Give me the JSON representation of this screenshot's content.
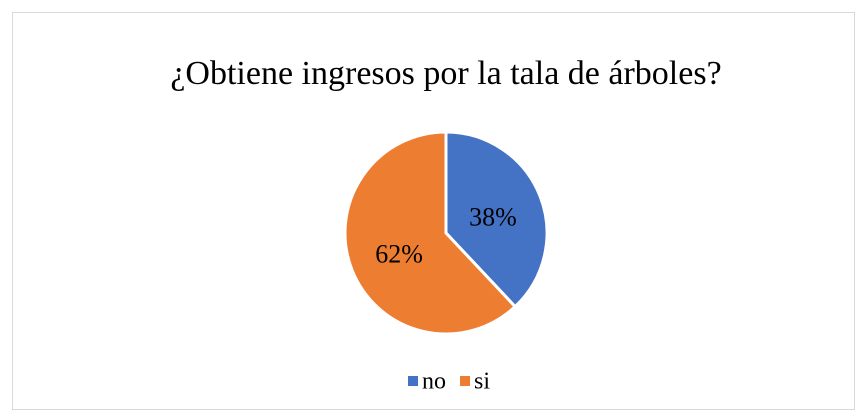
{
  "chart_data": {
    "type": "pie",
    "title": "¿Obtiene ingresos por la tala de árboles?",
    "categories": [
      "no",
      "si"
    ],
    "values": [
      38,
      62
    ],
    "value_labels": [
      "38%",
      "62%"
    ],
    "colors": [
      "#4472c4",
      "#ed7d31"
    ],
    "legend": "bottom"
  }
}
